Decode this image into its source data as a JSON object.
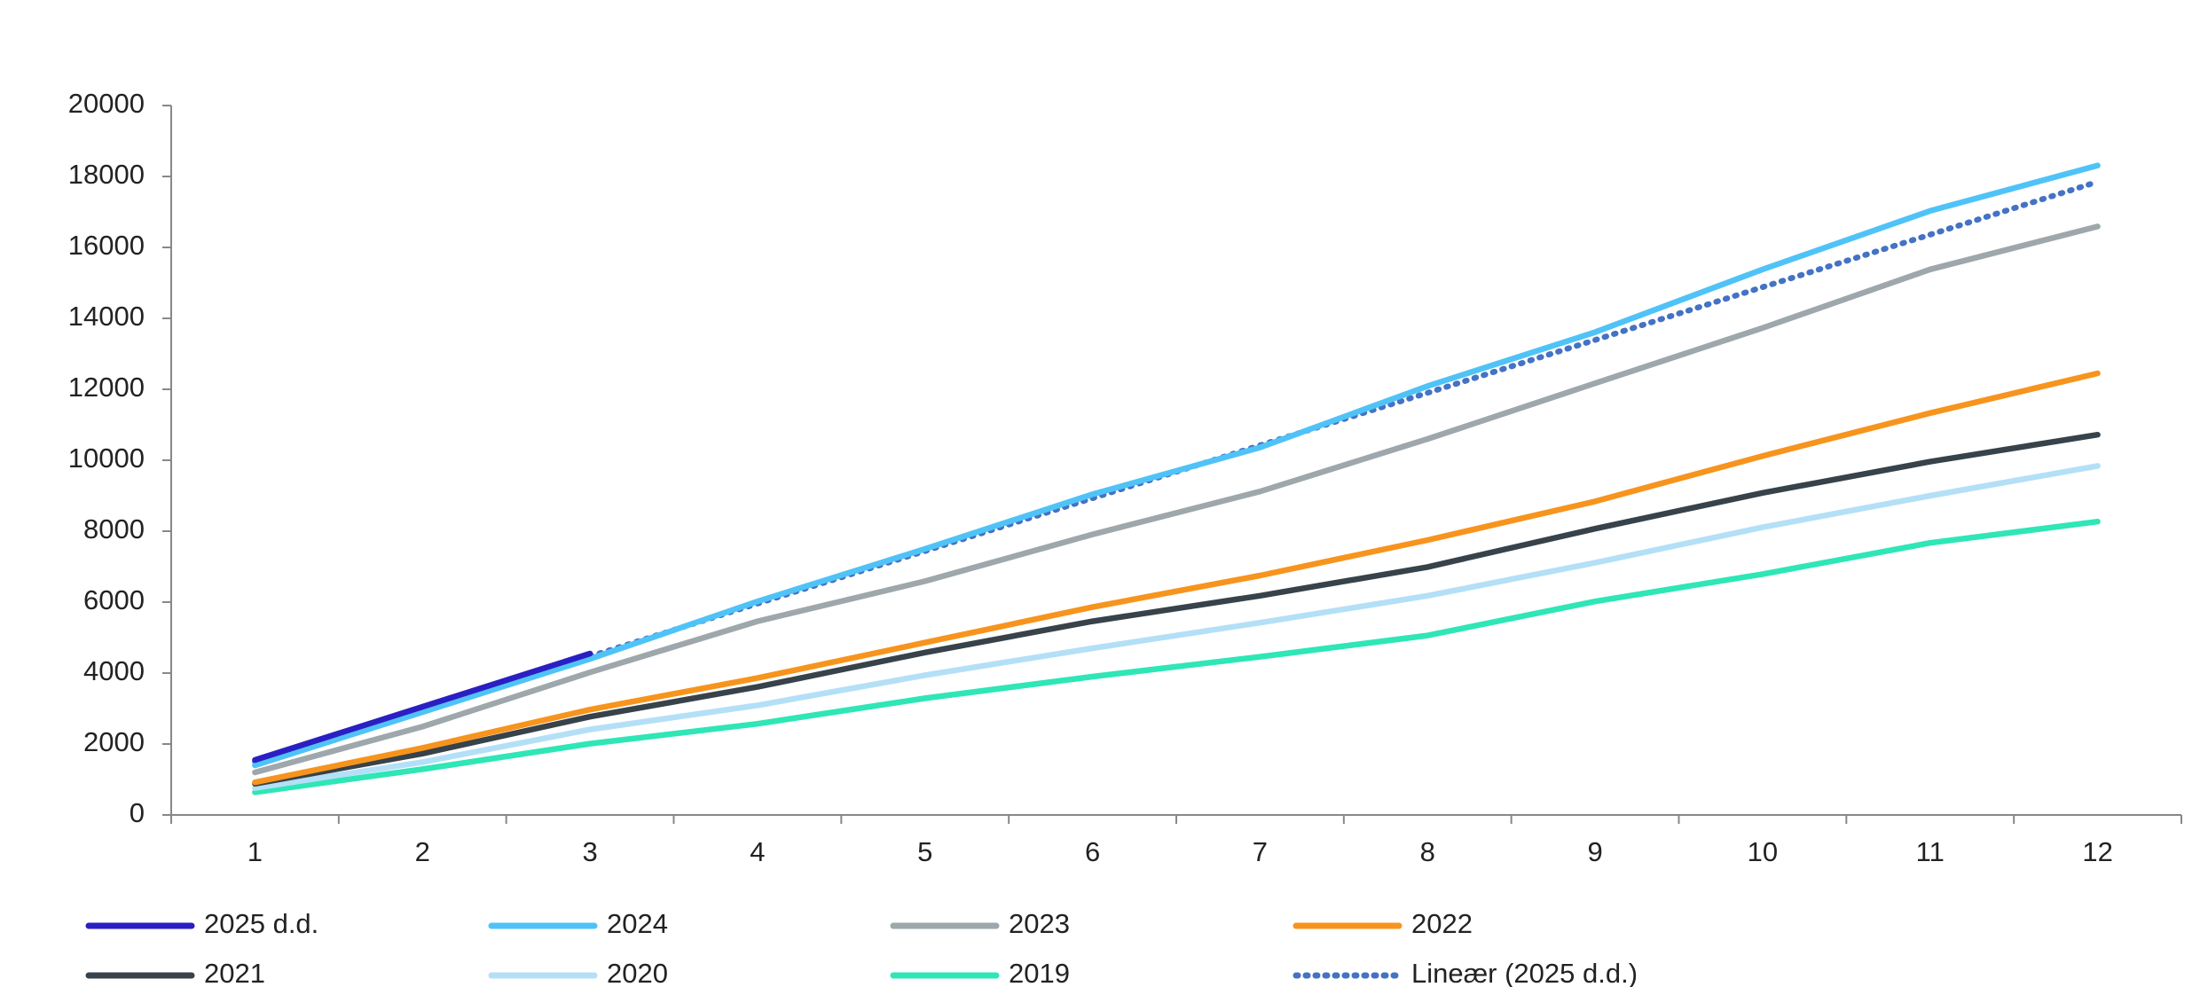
{
  "chart_data": {
    "type": "line",
    "categories": [
      "1",
      "2",
      "3",
      "4",
      "5",
      "6",
      "7",
      "8",
      "9",
      "10",
      "11",
      "12"
    ],
    "ylim": [
      0,
      20000
    ],
    "yticks": [
      0,
      2000,
      4000,
      6000,
      8000,
      10000,
      12000,
      14000,
      16000,
      18000,
      20000
    ],
    "legend": "bottom",
    "series": [
      {
        "name": "2025 d.d.",
        "color": "#2a1fc2",
        "values": [
          1550,
          3050,
          4550,
          null,
          null,
          null,
          null,
          null,
          null,
          null,
          null,
          null
        ]
      },
      {
        "name": "2024",
        "color": "#4fc3f7",
        "values": [
          1400,
          2900,
          4400,
          6020,
          7500,
          9040,
          10360,
          12090,
          13610,
          15380,
          17030,
          18310
        ]
      },
      {
        "name": "2023",
        "color": "#9ea7ab",
        "values": [
          1200,
          2490,
          4020,
          5460,
          6590,
          7910,
          9120,
          10600,
          12170,
          13730,
          15380,
          16590
        ]
      },
      {
        "name": "2022",
        "color": "#f7941d",
        "values": [
          920,
          1890,
          2970,
          3860,
          4860,
          5860,
          6750,
          7750,
          8840,
          10120,
          11330,
          12450
        ]
      },
      {
        "name": "2021",
        "color": "#37424a",
        "values": [
          880,
          1730,
          2770,
          3610,
          4580,
          5460,
          6180,
          6990,
          8070,
          9080,
          9960,
          10720
        ]
      },
      {
        "name": "2020",
        "color": "#b3e0f7",
        "values": [
          760,
          1490,
          2410,
          3090,
          3940,
          4700,
          5420,
          6180,
          7110,
          8110,
          9000,
          9840
        ]
      },
      {
        "name": "2019",
        "color": "#2ee6b6",
        "values": [
          640,
          1290,
          2010,
          2570,
          3290,
          3900,
          4460,
          5060,
          6020,
          6790,
          7670,
          8270
        ]
      },
      {
        "name": "Lineær (2025 d.d.)",
        "color": "#4472c4",
        "style": "dotted",
        "values": [
          1500,
          2990,
          4470,
          5960,
          7440,
          8930,
          10420,
          11900,
          13390,
          14880,
          16360,
          17850
        ]
      }
    ]
  }
}
